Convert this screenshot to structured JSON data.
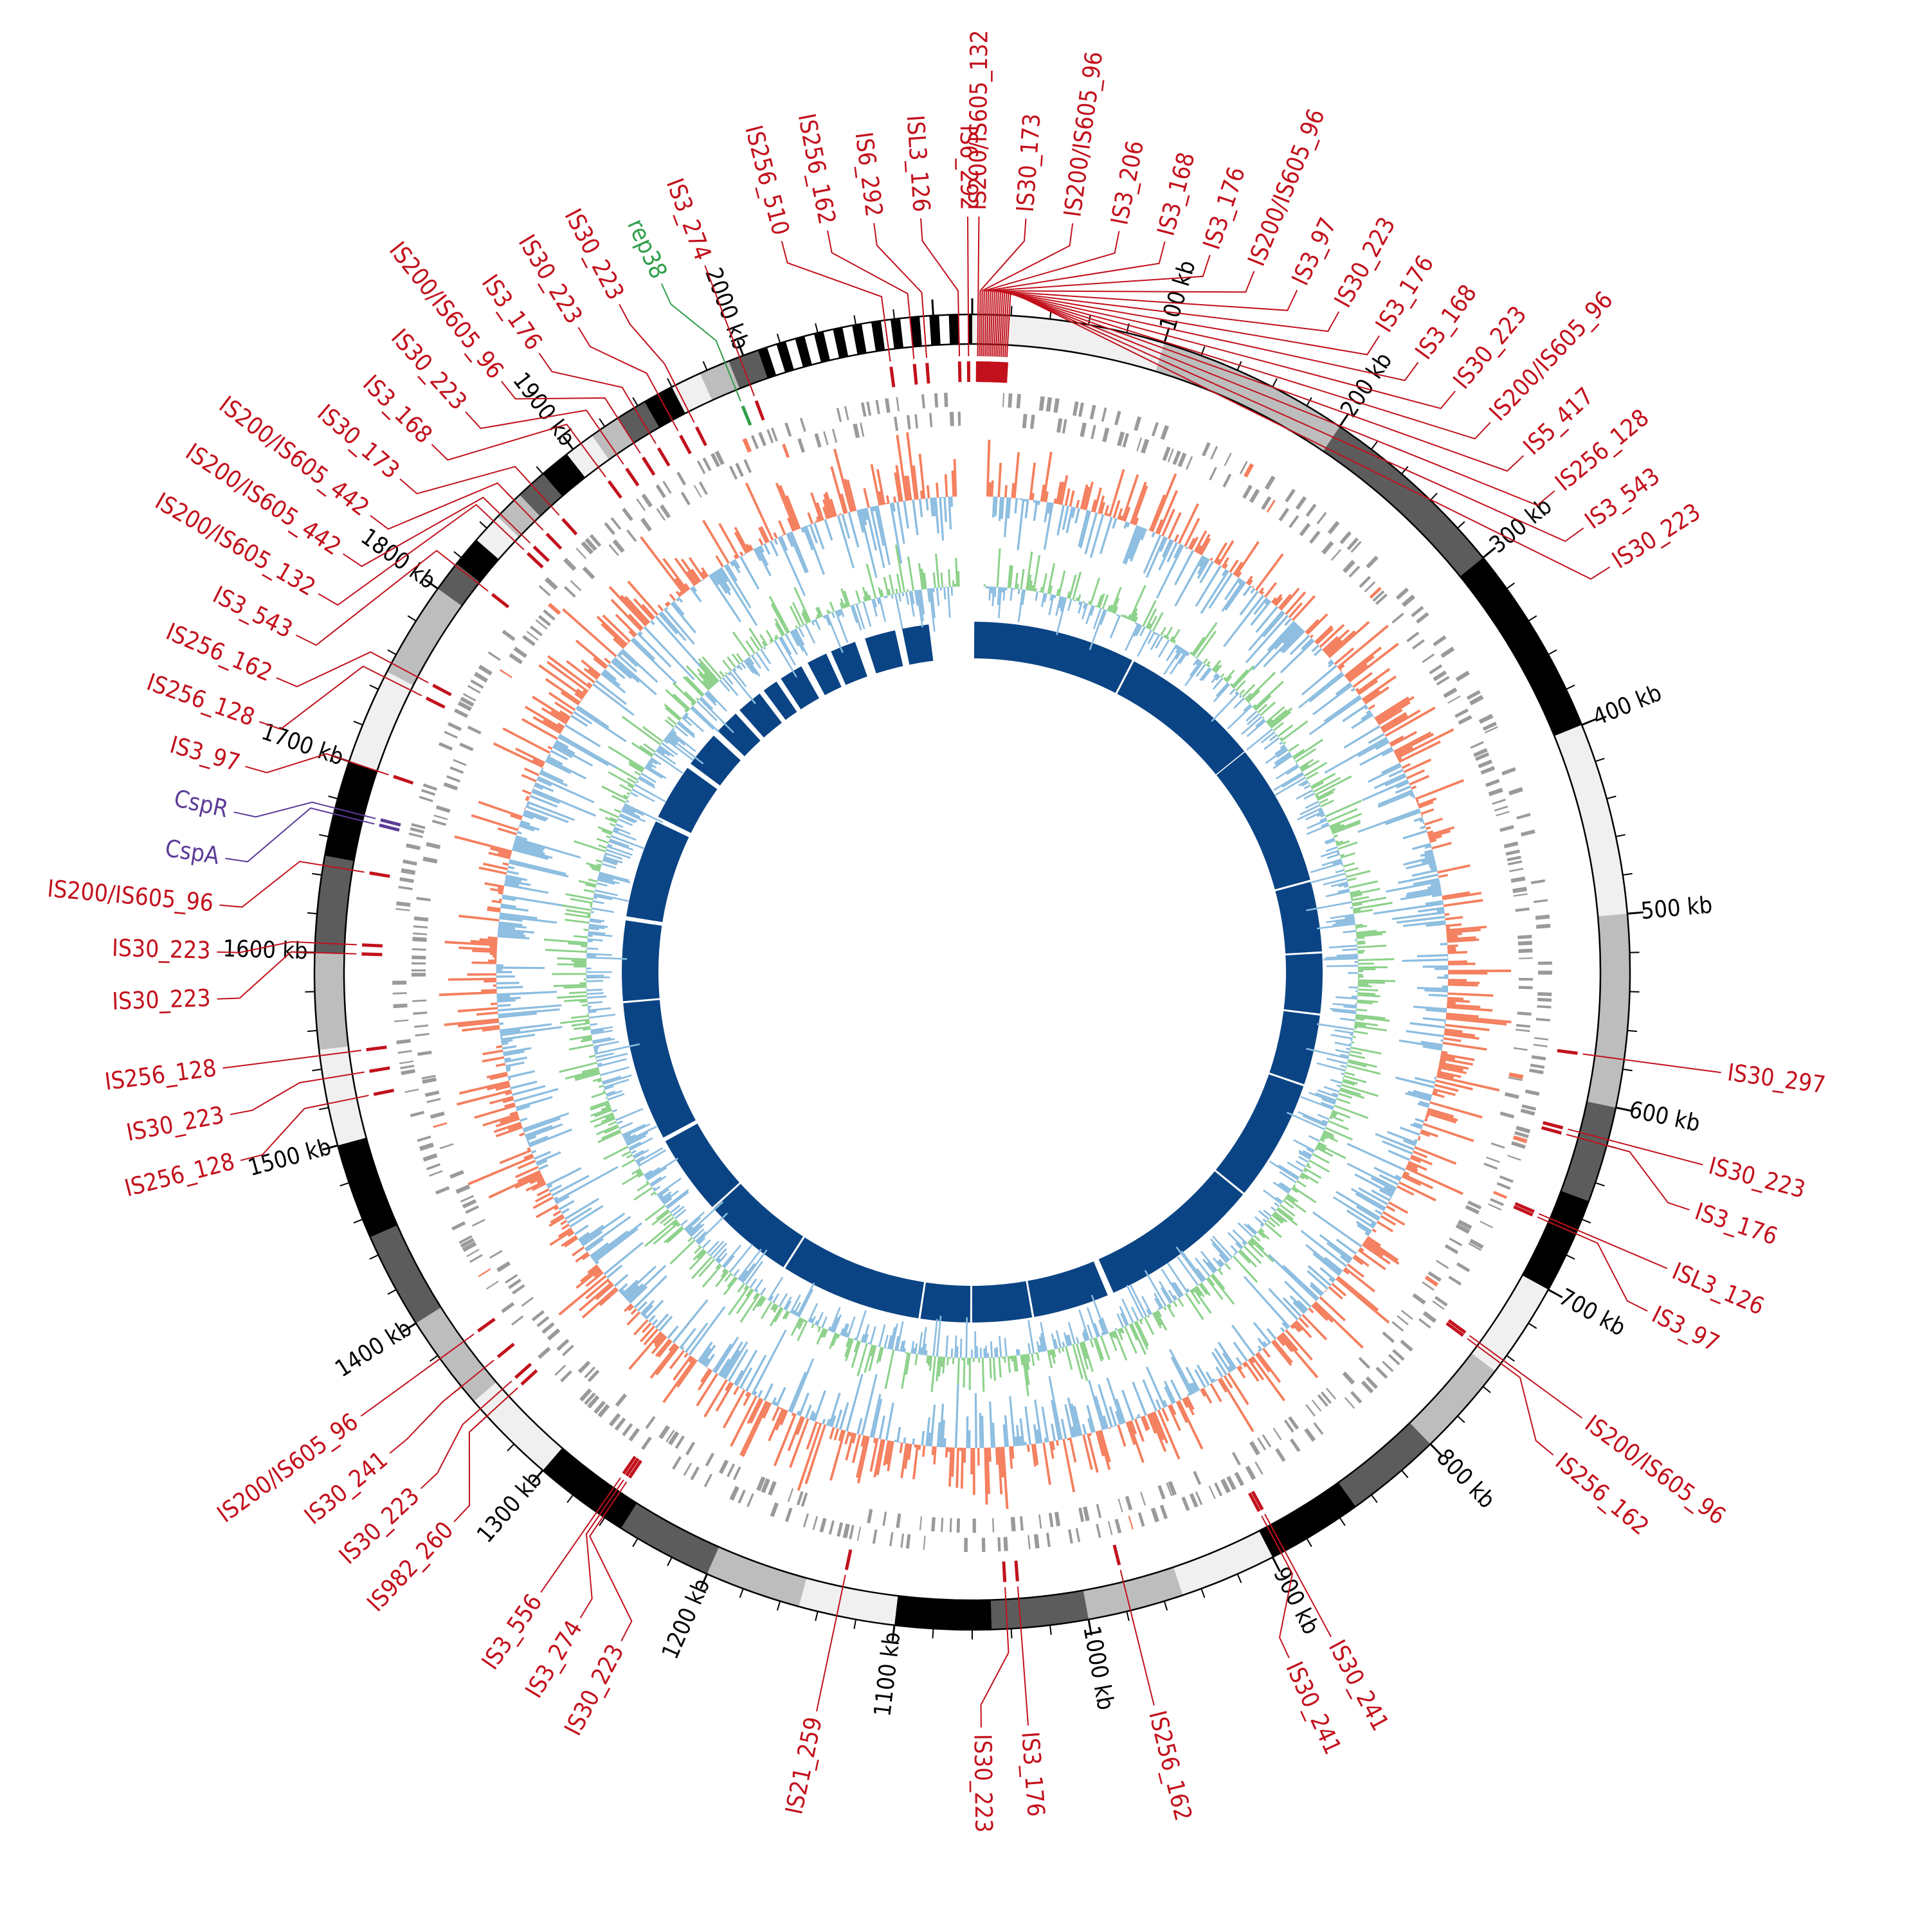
{
  "genome": {
    "length_kb": 2120,
    "major_ticks_kb": [
      100,
      200,
      300,
      400,
      500,
      600,
      700,
      800,
      900,
      1000,
      1100,
      1200,
      1300,
      1400,
      1500,
      1600,
      1700,
      1800,
      1900,
      2000
    ],
    "tick_unit": "kb"
  },
  "colors": {
    "is_element": "#c2111c",
    "rep_element": "#2e9e48",
    "csp_gene": "#5b3b97",
    "gene_gray": "#9a9a9a",
    "gc_positive": "#f47f5e",
    "gc_negative": "#8cbde0",
    "skew_positive": "#8cd18a",
    "skew_negative": "#8cbde0",
    "synteny": "#0b4484"
  },
  "chart_data": {
    "type": "circular-genome-map",
    "annotations": [
      {
        "label": "IS200/IS605_132",
        "kb": 3,
        "color": "is_element"
      },
      {
        "label": "IS30_173",
        "kb": 4,
        "color": "is_element"
      },
      {
        "label": "IS200/IS605_96",
        "kb": 5,
        "color": "is_element"
      },
      {
        "label": "IS3_206",
        "kb": 6,
        "color": "is_element"
      },
      {
        "label": "IS3_168",
        "kb": 7,
        "color": "is_element"
      },
      {
        "label": "IS3_176",
        "kb": 8,
        "color": "is_element"
      },
      {
        "label": "IS200/IS605_96",
        "kb": 9,
        "color": "is_element"
      },
      {
        "label": "IS3_97",
        "kb": 10,
        "color": "is_element"
      },
      {
        "label": "IS30_223",
        "kb": 11,
        "color": "is_element"
      },
      {
        "label": "IS3_176",
        "kb": 12,
        "color": "is_element"
      },
      {
        "label": "IS3_168",
        "kb": 13,
        "color": "is_element"
      },
      {
        "label": "IS30_223",
        "kb": 14,
        "color": "is_element"
      },
      {
        "label": "IS200/IS605_96",
        "kb": 15,
        "color": "is_element"
      },
      {
        "label": "IS5_417",
        "kb": 16,
        "color": "is_element"
      },
      {
        "label": "IS256_128",
        "kb": 17,
        "color": "is_element"
      },
      {
        "label": "IS3_543",
        "kb": 18,
        "color": "is_element"
      },
      {
        "label": "IS30_223",
        "kb": 19,
        "color": "is_element"
      },
      {
        "label": "IS6_292",
        "kb": 2118,
        "color": "is_element"
      },
      {
        "label": "ISL3_126",
        "kb": 2113,
        "color": "is_element"
      },
      {
        "label": "IS6_292",
        "kb": 2095,
        "color": "is_element"
      },
      {
        "label": "IS256_162",
        "kb": 2088,
        "color": "is_element"
      },
      {
        "label": "IS256_510",
        "kb": 2075,
        "color": "is_element"
      },
      {
        "label": "rep38",
        "kb": 1990,
        "color": "rep_element"
      },
      {
        "label": "IS30_223",
        "kb": 1962,
        "color": "is_element"
      },
      {
        "label": "IS30_223",
        "kb": 1952,
        "color": "is_element"
      },
      {
        "label": "IS3_176",
        "kb": 1938,
        "color": "is_element"
      },
      {
        "label": "IS200/IS605_96",
        "kb": 1928,
        "color": "is_element"
      },
      {
        "label": "IS30_223",
        "kb": 1917,
        "color": "is_element"
      },
      {
        "label": "IS3_168",
        "kb": 1905,
        "color": "is_element"
      },
      {
        "label": "IS30_173",
        "kb": 1872,
        "color": "is_element"
      },
      {
        "label": "IS200/IS605_442",
        "kb": 1860,
        "color": "is_element"
      },
      {
        "label": "IS3_274",
        "kb": 1998,
        "color": "is_element"
      },
      {
        "label": "IS200/IS605_442",
        "kb": 1850,
        "color": "is_element"
      },
      {
        "label": "IS200/IS605_132",
        "kb": 1845,
        "color": "is_element"
      },
      {
        "label": "IS3_543",
        "kb": 1815,
        "color": "is_element"
      },
      {
        "label": "IS256_162",
        "kb": 1755,
        "color": "is_element"
      },
      {
        "label": "IS256_128",
        "kb": 1747,
        "color": "is_element"
      },
      {
        "label": "IS3_97",
        "kb": 1700,
        "color": "is_element"
      },
      {
        "label": "CspR",
        "kb": 1675,
        "color": "csp_gene"
      },
      {
        "label": "CspA",
        "kb": 1672,
        "color": "csp_gene"
      },
      {
        "label": "IS200/IS605_96",
        "kb": 1645,
        "color": "is_element"
      },
      {
        "label": "IS30_223",
        "kb": 1605,
        "color": "is_element"
      },
      {
        "label": "IS30_223",
        "kb": 1600,
        "color": "is_element"
      },
      {
        "label": "IS256_128",
        "kb": 1547,
        "color": "is_element"
      },
      {
        "label": "IS30_223",
        "kb": 1535,
        "color": "is_element"
      },
      {
        "label": "IS256_128",
        "kb": 1522,
        "color": "is_element"
      },
      {
        "label": "IS200/IS605_96",
        "kb": 1378,
        "color": "is_element"
      },
      {
        "label": "IS30_241",
        "kb": 1360,
        "color": "is_element"
      },
      {
        "label": "IS30_223",
        "kb": 1345,
        "color": "is_element"
      },
      {
        "label": "IS982_260",
        "kb": 1340,
        "color": "is_element"
      },
      {
        "label": "IS3_556",
        "kb": 1265,
        "color": "is_element"
      },
      {
        "label": "IS3_274",
        "kb": 1263,
        "color": "is_element"
      },
      {
        "label": "IS30_223",
        "kb": 1261,
        "color": "is_element"
      },
      {
        "label": "IS21_259",
        "kb": 1130,
        "color": "is_element"
      },
      {
        "label": "IS30_223",
        "kb": 1042,
        "color": "is_element"
      },
      {
        "label": "IS3_176",
        "kb": 1035,
        "color": "is_element"
      },
      {
        "label": "IS256_162",
        "kb": 978,
        "color": "is_element"
      },
      {
        "label": "IS30_241",
        "kb": 895,
        "color": "is_element"
      },
      {
        "label": "IS30_241",
        "kb": 893,
        "color": "is_element"
      },
      {
        "label": "IS256_162",
        "kb": 745,
        "color": "is_element"
      },
      {
        "label": "IS200/IS605_96",
        "kb": 743,
        "color": "is_element"
      },
      {
        "label": "IS3_97",
        "kb": 668,
        "color": "is_element"
      },
      {
        "label": "ISL3_126",
        "kb": 666,
        "color": "is_element"
      },
      {
        "label": "IS3_176",
        "kb": 620,
        "color": "is_element"
      },
      {
        "label": "IS30_223",
        "kb": 617,
        "color": "is_element"
      },
      {
        "label": "IS30_297",
        "kb": 575,
        "color": "is_element"
      }
    ]
  }
}
